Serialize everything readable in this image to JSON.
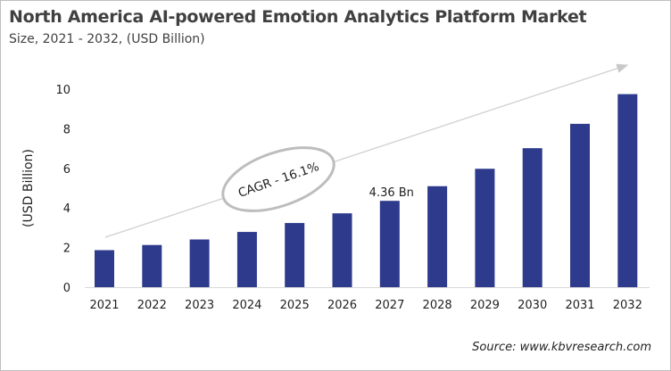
{
  "chart_data": {
    "type": "bar",
    "title": "North America AI-powered Emotion Analytics Platform Market",
    "subtitle": "Size, 2021 - 2032, (USD Billion)",
    "xlabel": "",
    "ylabel": "(USD Billion)",
    "categories": [
      "2021",
      "2022",
      "2023",
      "2024",
      "2025",
      "2026",
      "2027",
      "2028",
      "2029",
      "2030",
      "2031",
      "2032"
    ],
    "values": [
      1.87,
      2.13,
      2.41,
      2.79,
      3.24,
      3.73,
      4.36,
      5.1,
      5.98,
      7.02,
      8.25,
      9.75
    ],
    "ylim": [
      0,
      10
    ],
    "yticks": [
      "0",
      "2",
      "4",
      "6",
      "8",
      "10"
    ],
    "grid": false,
    "bar_color": "#2e3a8c",
    "annotations": {
      "value_label": {
        "category": "2027",
        "text": "4.36 Bn"
      },
      "cagr": "CAGR - 16.1%"
    },
    "source": "Source: www.kbvresearch.com"
  }
}
